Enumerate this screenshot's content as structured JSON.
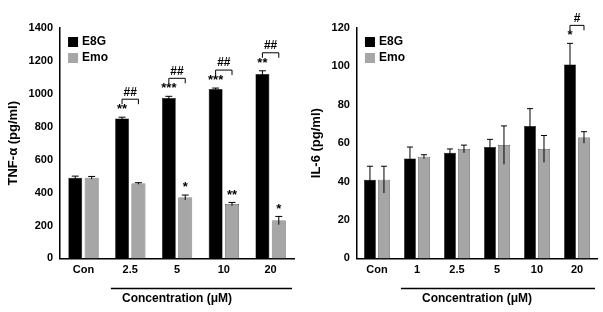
{
  "chart_data": [
    {
      "type": "bar",
      "y_label": "TNF-α (pg/ml)",
      "x_label": "Concentration (μM)",
      "categories": [
        "Con",
        "2.5",
        "5",
        "10",
        "20"
      ],
      "series": [
        {
          "name": "E8G",
          "color": "#000000",
          "values": [
            490,
            850,
            975,
            1030,
            1120
          ],
          "errors": [
            10,
            8,
            10,
            5,
            20
          ]
        },
        {
          "name": "Emo",
          "color": "#a6a6a6",
          "values": [
            490,
            455,
            370,
            330,
            230
          ],
          "errors": [
            8,
            5,
            15,
            10,
            25
          ]
        }
      ],
      "ylim": [
        0,
        1400
      ],
      "yticks": [
        0,
        200,
        400,
        600,
        800,
        1000,
        1200,
        1400
      ],
      "grid": false,
      "legend": "top-left",
      "annotations": [
        {
          "series": "E8G",
          "category": "2.5",
          "text": "**"
        },
        {
          "series": "E8G",
          "category": "5",
          "text": "***"
        },
        {
          "series": "E8G",
          "category": "10",
          "text": "***"
        },
        {
          "series": "E8G",
          "category": "20",
          "text": "**"
        },
        {
          "series": "Emo",
          "category": "5",
          "text": "*"
        },
        {
          "series": "Emo",
          "category": "10",
          "text": "**"
        },
        {
          "series": "Emo",
          "category": "20",
          "text": "*"
        }
      ],
      "brackets": [
        {
          "category": "2.5",
          "text": "##"
        },
        {
          "category": "5",
          "text": "##"
        },
        {
          "category": "10",
          "text": "##"
        },
        {
          "category": "20",
          "text": "##"
        }
      ]
    },
    {
      "type": "bar",
      "y_label": "IL-6 (pg/ml)",
      "x_label": "Concentration (μM)",
      "categories": [
        "Con",
        "1",
        "2.5",
        "5",
        "10",
        "20"
      ],
      "series": [
        {
          "name": "E8G",
          "color": "#000000",
          "values": [
            41,
            52,
            55,
            58,
            69,
            101
          ],
          "errors": [
            7,
            6,
            2,
            4,
            9,
            11
          ]
        },
        {
          "name": "Emo",
          "color": "#a6a6a6",
          "values": [
            41,
            53,
            57,
            59,
            57,
            63
          ],
          "errors": [
            7,
            1,
            2,
            10,
            7,
            3
          ]
        }
      ],
      "ylim": [
        0,
        120
      ],
      "yticks": [
        0,
        20,
        40,
        60,
        80,
        100,
        120
      ],
      "grid": false,
      "legend": "top-left",
      "annotations": [
        {
          "series": "E8G",
          "category": "20",
          "text": "*"
        }
      ],
      "brackets": [
        {
          "category": "20",
          "text": "#"
        }
      ]
    }
  ]
}
